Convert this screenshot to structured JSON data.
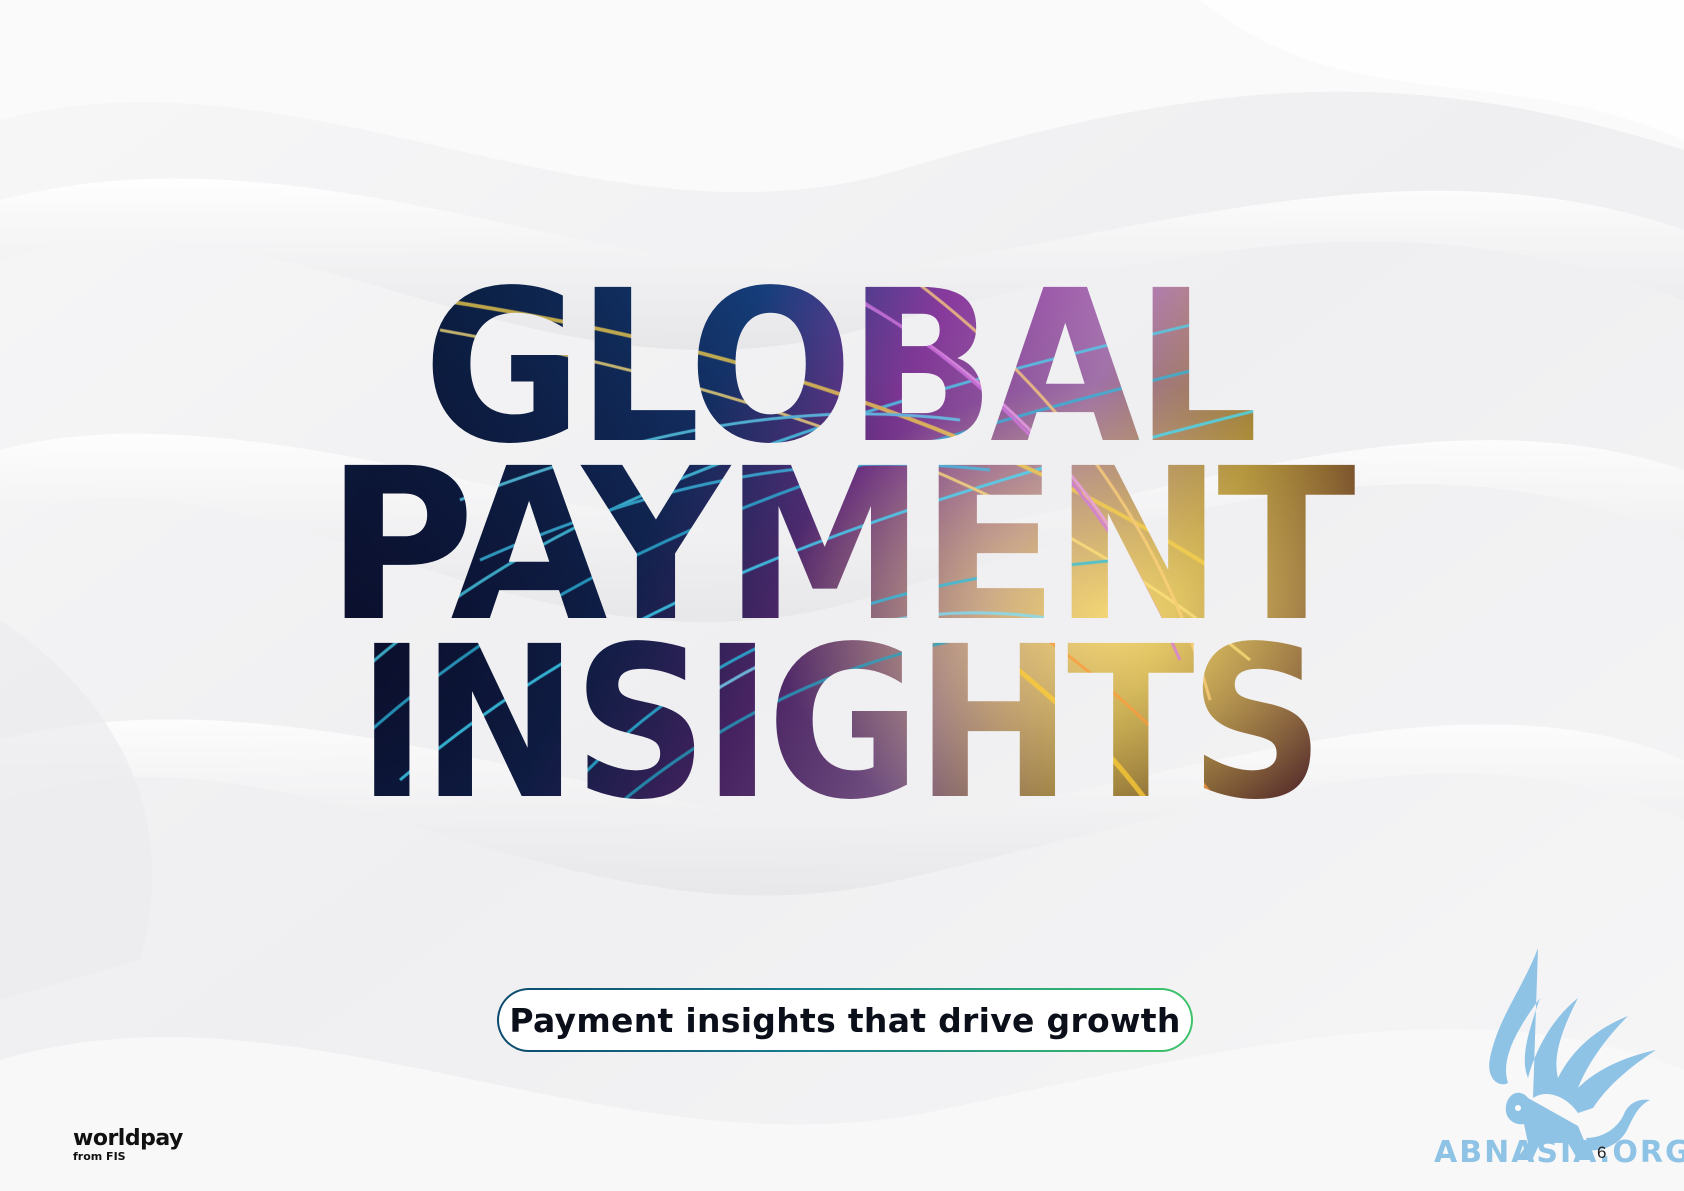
{
  "title": {
    "line1": "GLOBAL",
    "line2": "PAYMENT",
    "line3": "INSIGHTS"
  },
  "tagline": "Payment insights that drive growth",
  "logo": {
    "name": "worldpay",
    "sub": "from FIS"
  },
  "watermark": {
    "text": "ABNASIA.ORG",
    "icon": "griffin-icon"
  },
  "page_number": "6",
  "colors": {
    "background": "#f4f4f5",
    "title_dark": "#121430",
    "title_cyan": "#1fa7c4",
    "title_magenta": "#b44bc9",
    "title_gold": "#f2c230",
    "tagline_border_start": "#0b4a6e",
    "tagline_border_end": "#3fc46a",
    "watermark": "#8ec3e6"
  }
}
